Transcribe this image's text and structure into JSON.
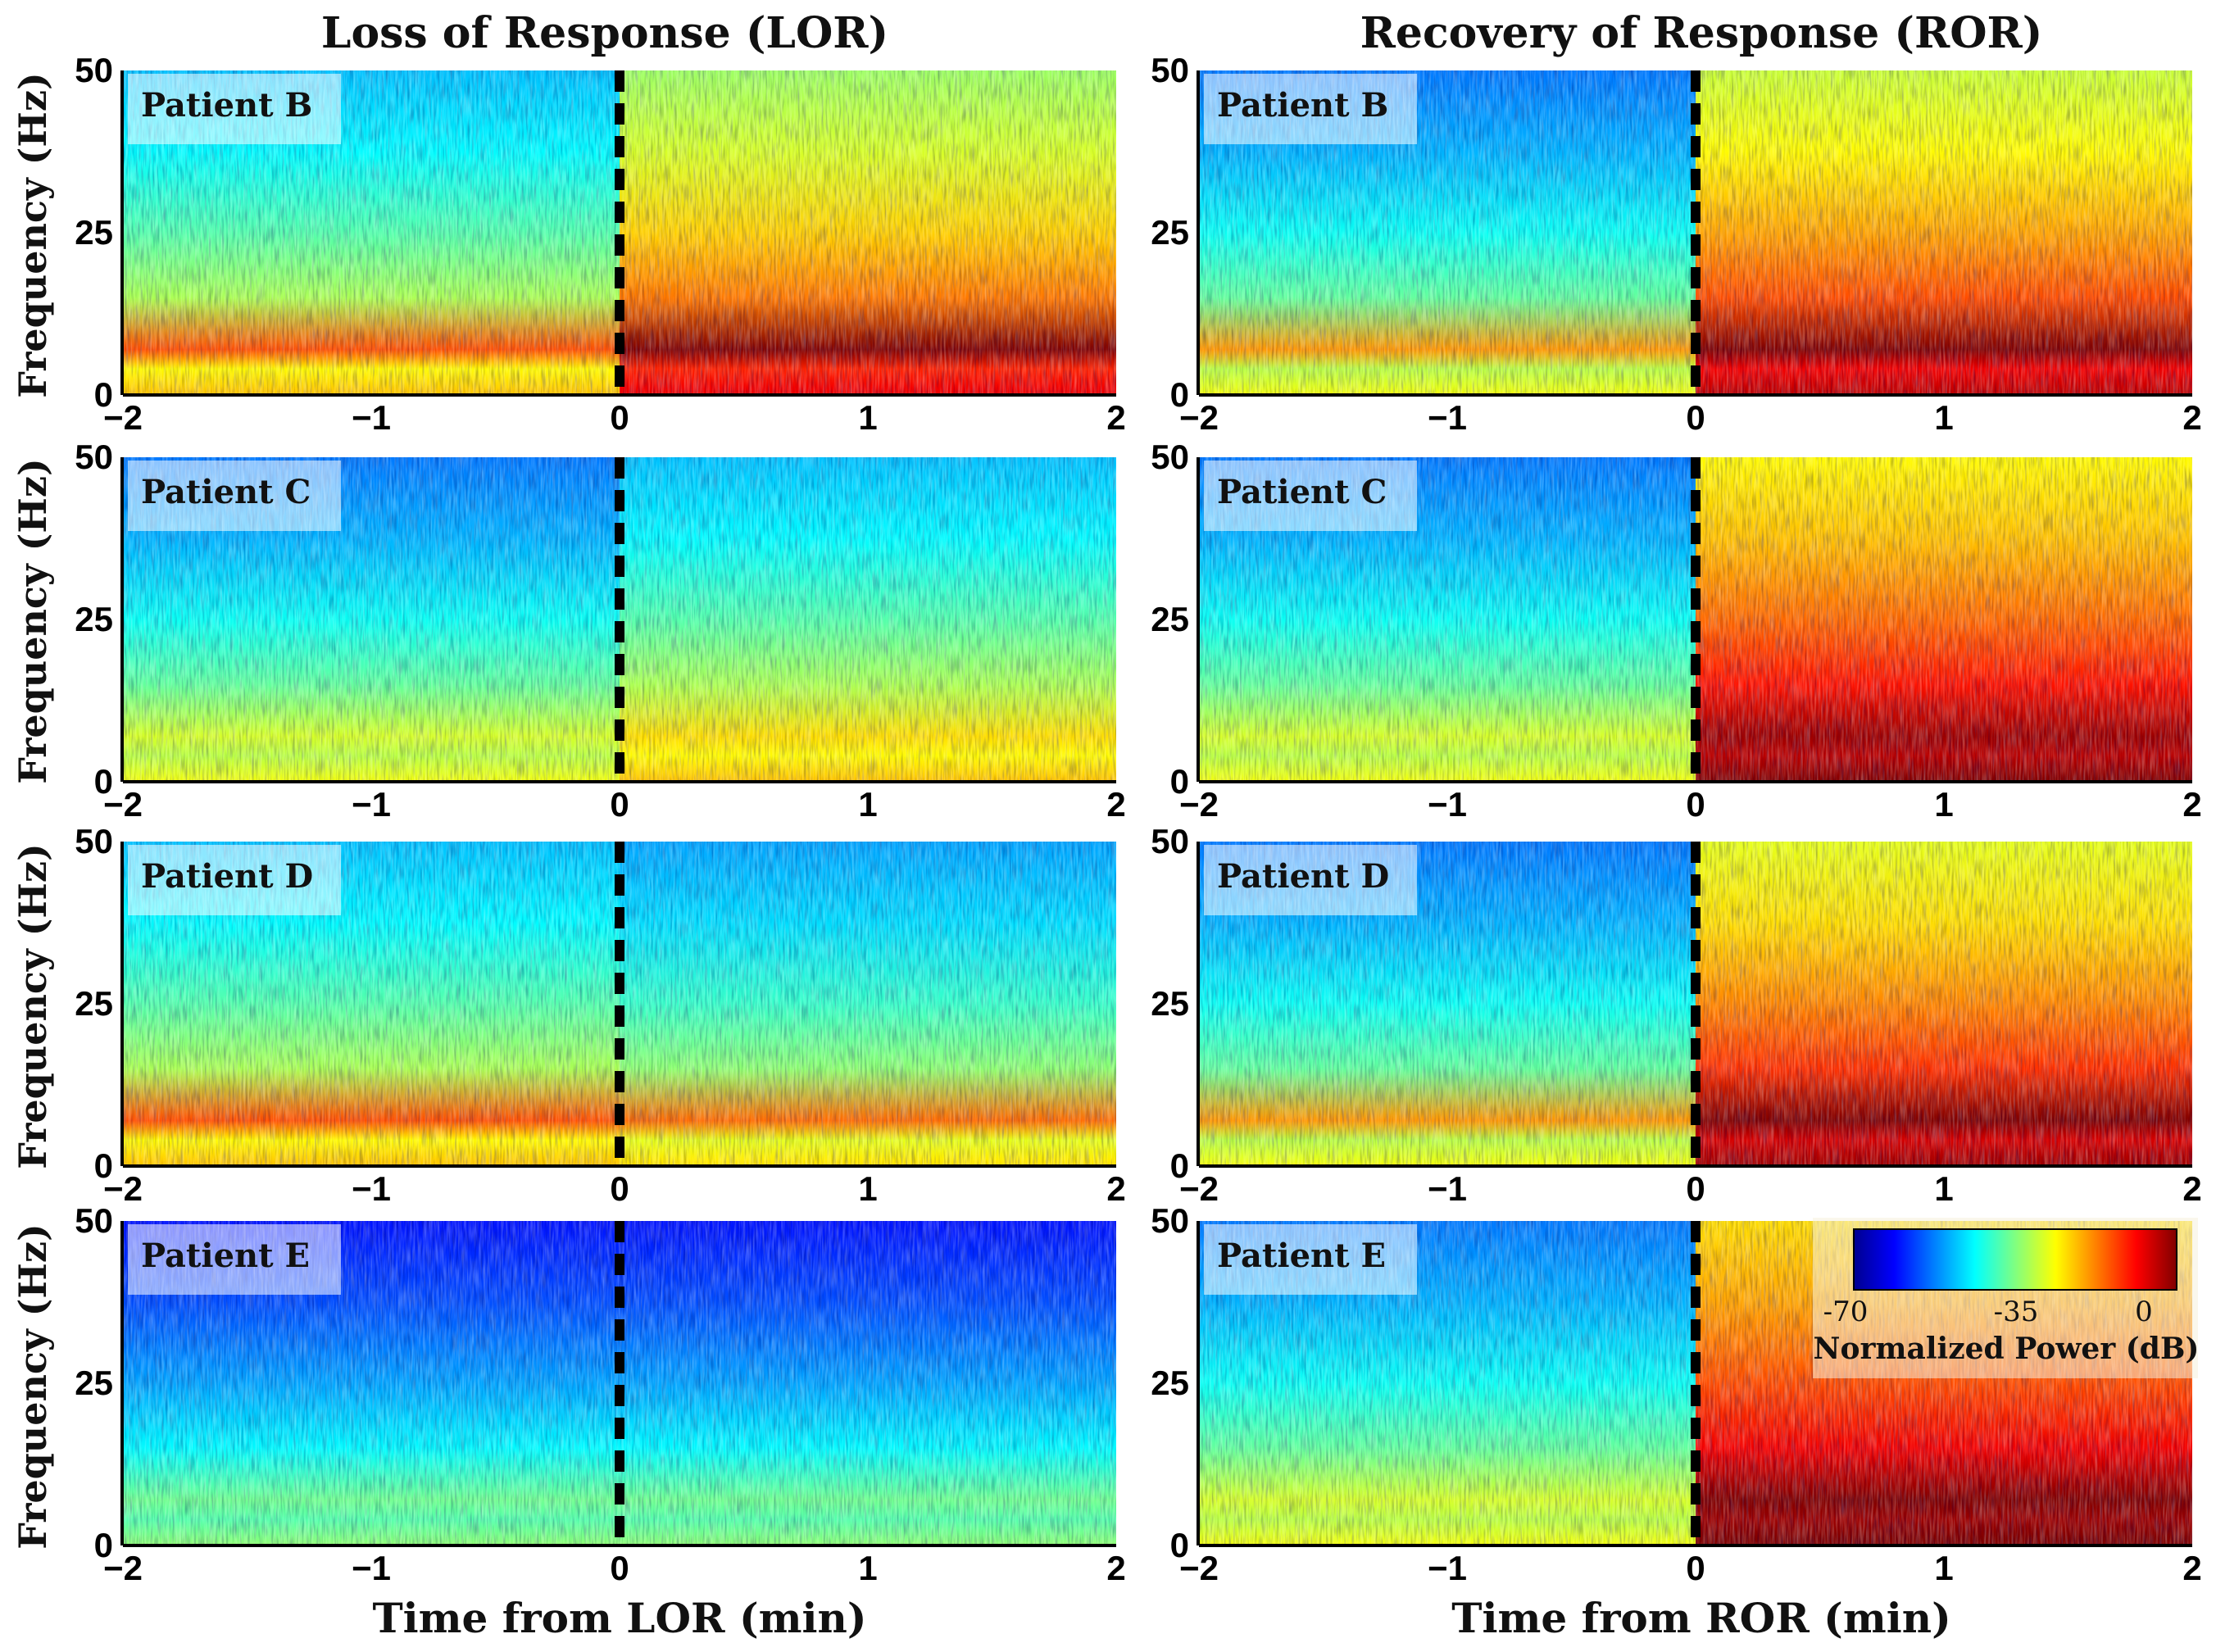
{
  "figure": {
    "left_title": "Loss of Response (LOR)",
    "right_title": "Recovery of Response (ROR)",
    "ylabel": "Frequency (Hz)",
    "left_xlabel": "Time from LOR (min)",
    "right_xlabel": "Time from ROR (min)"
  },
  "chart_data": [
    {
      "type": "heatmap",
      "column": "LOR",
      "patient": "Patient B",
      "x": [
        -2,
        -1,
        0,
        1,
        2
      ],
      "xlim": [
        -2,
        2
      ],
      "y": [
        0,
        25,
        50
      ],
      "ylim": [
        0,
        50
      ],
      "xtick_labels": [
        "−2",
        "−1",
        "0",
        "1",
        "2"
      ],
      "ytick_labels": [
        "0",
        "25",
        "50"
      ],
      "event_marker_x": 0,
      "alpha_band_hz": [
        7,
        14
      ],
      "pre_event_power_db": -40,
      "post_event_power_db": -25
    },
    {
      "type": "heatmap",
      "column": "ROR",
      "patient": "Patient B",
      "x": [
        -2,
        -1,
        0,
        1,
        2
      ],
      "xlim": [
        -2,
        2
      ],
      "y": [
        0,
        25,
        50
      ],
      "ylim": [
        0,
        50
      ],
      "xtick_labels": [
        "−2",
        "−1",
        "0",
        "1",
        "2"
      ],
      "ytick_labels": [
        "0",
        "25",
        "50"
      ],
      "event_marker_x": 0,
      "alpha_band_hz": [
        5,
        13
      ],
      "pre_event_power_db": -45,
      "post_event_power_db": -22
    },
    {
      "type": "heatmap",
      "column": "LOR",
      "patient": "Patient C",
      "x": [
        -2,
        -1,
        0,
        1,
        2
      ],
      "xlim": [
        -2,
        2
      ],
      "y": [
        0,
        25,
        50
      ],
      "ylim": [
        0,
        50
      ],
      "xtick_labels": [
        "−2",
        "−1",
        "0",
        "1",
        "2"
      ],
      "ytick_labels": [
        "0",
        "25",
        "50"
      ],
      "event_marker_x": 0,
      "alpha_band_hz": [
        8,
        14
      ],
      "pre_event_power_db": -45,
      "post_event_power_db": -40
    },
    {
      "type": "heatmap",
      "column": "ROR",
      "patient": "Patient C",
      "x": [
        -2,
        -1,
        0,
        1,
        2
      ],
      "xlim": [
        -2,
        2
      ],
      "y": [
        0,
        25,
        50
      ],
      "ylim": [
        0,
        50
      ],
      "xtick_labels": [
        "−2",
        "−1",
        "0",
        "1",
        "2"
      ],
      "ytick_labels": [
        "0",
        "25",
        "50"
      ],
      "event_marker_x": 0,
      "alpha_band_hz": [
        8,
        14
      ],
      "pre_event_power_db": -45,
      "post_event_power_db": -18
    },
    {
      "type": "heatmap",
      "column": "LOR",
      "patient": "Patient D",
      "x": [
        -2,
        -1,
        0,
        1,
        2
      ],
      "xlim": [
        -2,
        2
      ],
      "y": [
        0,
        25,
        50
      ],
      "ylim": [
        0,
        50
      ],
      "xtick_labels": [
        "−2",
        "−1",
        "0",
        "1",
        "2"
      ],
      "ytick_labels": [
        "0",
        "25",
        "50"
      ],
      "event_marker_x": 0,
      "alpha_band_hz": [
        7,
        14
      ],
      "pre_event_power_db": -40,
      "post_event_power_db": -42
    },
    {
      "type": "heatmap",
      "column": "ROR",
      "patient": "Patient D",
      "x": [
        -2,
        -1,
        0,
        1,
        2
      ],
      "xlim": [
        -2,
        2
      ],
      "y": [
        0,
        25,
        50
      ],
      "ylim": [
        0,
        50
      ],
      "xtick_labels": [
        "−2",
        "−1",
        "0",
        "1",
        "2"
      ],
      "ytick_labels": [
        "0",
        "25",
        "50"
      ],
      "event_marker_x": 0,
      "alpha_band_hz": [
        6,
        13
      ],
      "pre_event_power_db": -45,
      "post_event_power_db": -20
    },
    {
      "type": "heatmap",
      "column": "LOR",
      "patient": "Patient E",
      "x": [
        -2,
        -1,
        0,
        1,
        2
      ],
      "xlim": [
        -2,
        2
      ],
      "y": [
        0,
        25,
        50
      ],
      "ylim": [
        0,
        50
      ],
      "xtick_labels": [
        "−2",
        "−1",
        "0",
        "1",
        "2"
      ],
      "ytick_labels": [
        "0",
        "25",
        "50"
      ],
      "event_marker_x": 0,
      "alpha_band_hz": [
        8,
        13
      ],
      "pre_event_power_db": -52,
      "post_event_power_db": -52
    },
    {
      "type": "heatmap",
      "column": "ROR",
      "patient": "Patient E",
      "x": [
        -2,
        -1,
        0,
        1,
        2
      ],
      "xlim": [
        -2,
        2
      ],
      "y": [
        0,
        25,
        50
      ],
      "ylim": [
        0,
        50
      ],
      "xtick_labels": [
        "−2",
        "−1",
        "0",
        "1",
        "2"
      ],
      "ytick_labels": [
        "0",
        "25",
        "50"
      ],
      "event_marker_x": 0,
      "alpha_band_hz": [
        8,
        14
      ],
      "pre_event_power_db": -45,
      "post_event_power_db": -16
    }
  ],
  "colorbar": {
    "min": -70,
    "mid": -35,
    "max": 0,
    "labels": [
      "-70",
      "-35",
      "0"
    ],
    "title": "Normalized Power (dB)",
    "colormap": [
      "#00008f",
      "#0000ff",
      "#0080ff",
      "#00ffff",
      "#80ff80",
      "#ffff00",
      "#ff8000",
      "#ff0000",
      "#800000"
    ]
  }
}
